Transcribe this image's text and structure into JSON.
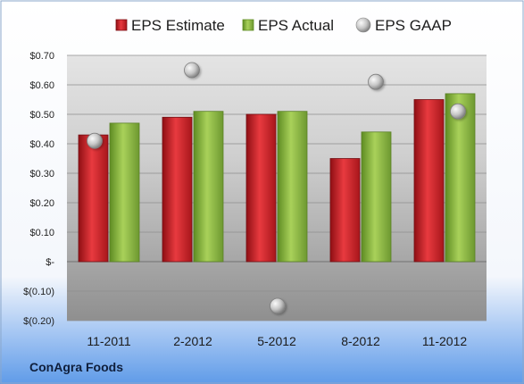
{
  "company_label": "ConAgra Foods",
  "chart_data": {
    "type": "bar",
    "categories": [
      "11-2011",
      "2-2012",
      "5-2012",
      "8-2012",
      "11-2012"
    ],
    "series": [
      {
        "name": "EPS Estimate",
        "type": "bar",
        "color": "#d9272e",
        "values": [
          0.43,
          0.49,
          0.5,
          0.35,
          0.55
        ]
      },
      {
        "name": "EPS Actual",
        "type": "bar",
        "color": "#8fbc3f",
        "values": [
          0.47,
          0.51,
          0.51,
          0.44,
          0.57
        ]
      },
      {
        "name": "EPS GAAP",
        "type": "scatter",
        "color": "#a9a9a9",
        "values": [
          0.41,
          0.65,
          -0.15,
          0.61,
          0.51
        ]
      }
    ],
    "yticks": [
      0.7,
      0.6,
      0.5,
      0.4,
      0.3,
      0.2,
      0.1,
      0,
      -0.1,
      -0.2
    ],
    "yticklabels": [
      "$0.70",
      "$0.60",
      "$0.50",
      "$0.40",
      "$0.30",
      "$0.20",
      "$0.10",
      "$-",
      "$(0.10)",
      "$(0.20)"
    ],
    "ylim": [
      -0.2,
      0.7
    ],
    "grid": true,
    "legend_position": "top",
    "title": "",
    "xlabel": "",
    "ylabel": ""
  }
}
